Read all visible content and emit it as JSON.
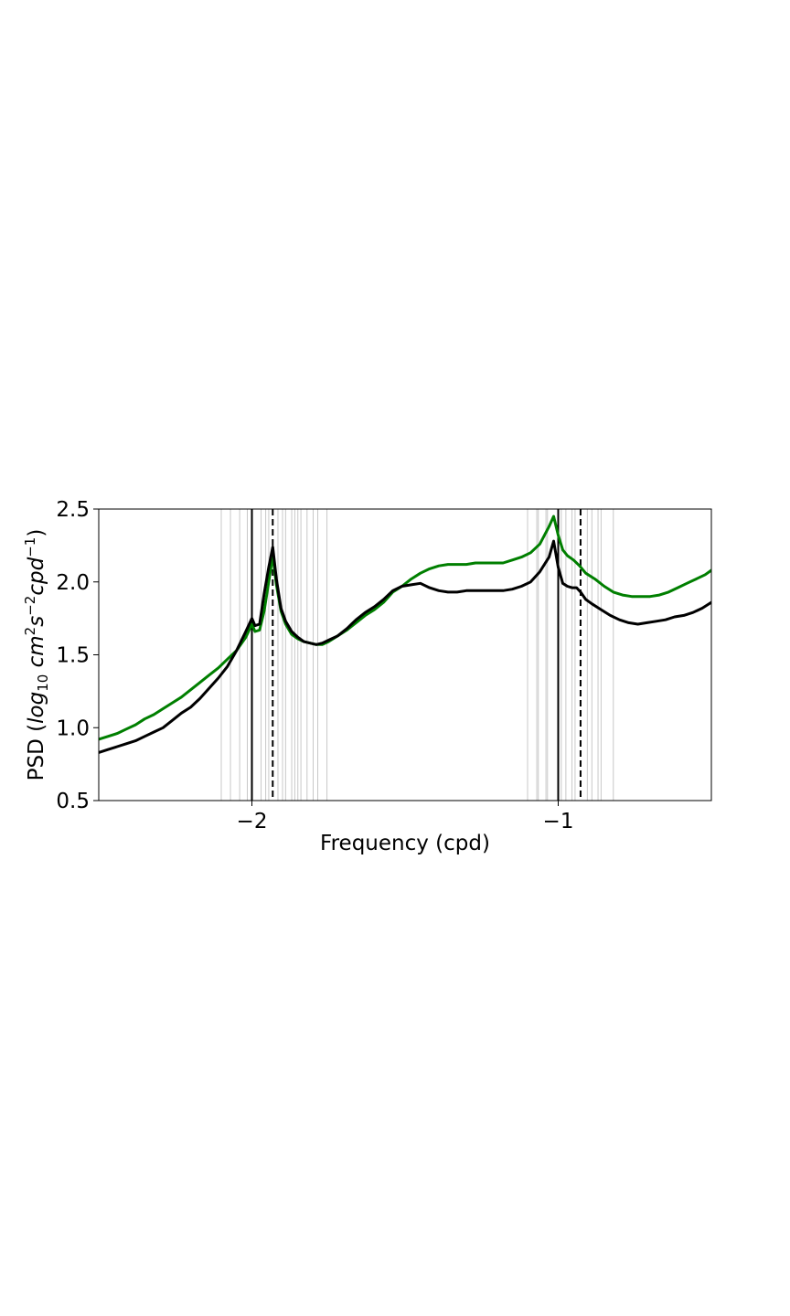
{
  "chart_data": {
    "type": "line",
    "xlabel": "Frequency (cpd)",
    "ylabel_parts": {
      "prefix": "PSD (",
      "log": "log",
      "log_sub": "10",
      "unit1": " cm",
      "exp1": "2",
      "unit2": "s",
      "exp2": "−2",
      "unit3": "cpd",
      "exp3": "−1",
      "suffix": ")"
    },
    "xlim": [
      -2.5,
      -0.5
    ],
    "ylim": [
      0.5,
      2.5
    ],
    "xticks": [
      {
        "value": -2,
        "label": "−2"
      },
      {
        "value": -1,
        "label": "−1"
      }
    ],
    "yticks": [
      {
        "value": 0.5,
        "label": "0.5"
      },
      {
        "value": 1.0,
        "label": "1.0"
      },
      {
        "value": 1.5,
        "label": "1.5"
      },
      {
        "value": 2.0,
        "label": "2.0"
      },
      {
        "value": 2.5,
        "label": "2.5"
      }
    ],
    "grid": false,
    "vlines_solid": [
      -2.0,
      -1.0
    ],
    "vlines_dashed": [
      -1.932,
      -0.927
    ],
    "vlines_gray": [
      -2.1,
      -2.07,
      -2.04,
      -2.015,
      -1.97,
      -1.955,
      -1.945,
      -1.915,
      -1.9,
      -1.89,
      -1.87,
      -1.86,
      -1.85,
      -1.84,
      -1.82,
      -1.8,
      -1.785,
      -1.755,
      -1.1,
      -1.07,
      -1.065,
      -1.04,
      -1.035,
      -0.99,
      -0.975,
      -0.955,
      -0.945,
      -0.905,
      -0.89,
      -0.87,
      -0.86,
      -0.82
    ],
    "colors": {
      "green": "#007f00",
      "black": "#000000",
      "vline_gray": "#c8c8c8"
    },
    "series": [
      {
        "color": "#007f00",
        "x": [
          -2.5,
          -2.47,
          -2.44,
          -2.41,
          -2.38,
          -2.35,
          -2.32,
          -2.29,
          -2.26,
          -2.23,
          -2.2,
          -2.17,
          -2.14,
          -2.11,
          -2.08,
          -2.05,
          -2.02,
          -2.0,
          -1.99,
          -1.975,
          -1.96,
          -1.945,
          -1.932,
          -1.92,
          -1.905,
          -1.89,
          -1.87,
          -1.85,
          -1.83,
          -1.81,
          -1.79,
          -1.77,
          -1.75,
          -1.72,
          -1.69,
          -1.66,
          -1.63,
          -1.6,
          -1.57,
          -1.54,
          -1.51,
          -1.48,
          -1.45,
          -1.42,
          -1.39,
          -1.36,
          -1.33,
          -1.3,
          -1.27,
          -1.24,
          -1.21,
          -1.18,
          -1.15,
          -1.12,
          -1.09,
          -1.06,
          -1.03,
          -1.015,
          -1.0,
          -0.985,
          -0.97,
          -0.95,
          -0.93,
          -0.91,
          -0.88,
          -0.85,
          -0.82,
          -0.79,
          -0.76,
          -0.73,
          -0.7,
          -0.67,
          -0.64,
          -0.61,
          -0.58,
          -0.55,
          -0.52,
          -0.5
        ],
        "y": [
          0.92,
          0.94,
          0.96,
          0.99,
          1.02,
          1.06,
          1.09,
          1.13,
          1.17,
          1.21,
          1.26,
          1.31,
          1.36,
          1.41,
          1.47,
          1.53,
          1.62,
          1.71,
          1.66,
          1.67,
          1.8,
          2.0,
          2.18,
          1.98,
          1.8,
          1.71,
          1.64,
          1.61,
          1.59,
          1.58,
          1.57,
          1.57,
          1.59,
          1.63,
          1.67,
          1.72,
          1.77,
          1.81,
          1.86,
          1.93,
          1.97,
          2.02,
          2.06,
          2.09,
          2.11,
          2.12,
          2.12,
          2.12,
          2.13,
          2.13,
          2.13,
          2.13,
          2.15,
          2.17,
          2.2,
          2.26,
          2.38,
          2.45,
          2.32,
          2.22,
          2.18,
          2.15,
          2.11,
          2.06,
          2.02,
          1.97,
          1.93,
          1.91,
          1.9,
          1.9,
          1.9,
          1.91,
          1.93,
          1.96,
          1.99,
          2.02,
          2.05,
          2.08
        ]
      },
      {
        "color": "#000000",
        "x": [
          -2.5,
          -2.47,
          -2.44,
          -2.41,
          -2.38,
          -2.35,
          -2.32,
          -2.29,
          -2.26,
          -2.23,
          -2.2,
          -2.17,
          -2.14,
          -2.11,
          -2.08,
          -2.05,
          -2.02,
          -2.0,
          -1.99,
          -1.975,
          -1.96,
          -1.945,
          -1.932,
          -1.92,
          -1.905,
          -1.89,
          -1.87,
          -1.85,
          -1.83,
          -1.81,
          -1.79,
          -1.77,
          -1.75,
          -1.72,
          -1.69,
          -1.66,
          -1.63,
          -1.6,
          -1.57,
          -1.54,
          -1.51,
          -1.48,
          -1.45,
          -1.42,
          -1.39,
          -1.36,
          -1.33,
          -1.3,
          -1.27,
          -1.24,
          -1.21,
          -1.18,
          -1.15,
          -1.12,
          -1.09,
          -1.06,
          -1.03,
          -1.015,
          -1.0,
          -0.985,
          -0.97,
          -0.955,
          -0.94,
          -0.927,
          -0.91,
          -0.89,
          -0.86,
          -0.83,
          -0.8,
          -0.77,
          -0.74,
          -0.71,
          -0.68,
          -0.65,
          -0.62,
          -0.59,
          -0.56,
          -0.53,
          -0.5
        ],
        "y": [
          0.83,
          0.85,
          0.87,
          0.89,
          0.91,
          0.94,
          0.97,
          1.0,
          1.05,
          1.1,
          1.14,
          1.2,
          1.27,
          1.34,
          1.42,
          1.53,
          1.66,
          1.75,
          1.7,
          1.71,
          1.92,
          2.1,
          2.24,
          2.02,
          1.82,
          1.73,
          1.66,
          1.62,
          1.59,
          1.58,
          1.57,
          1.58,
          1.6,
          1.63,
          1.68,
          1.74,
          1.79,
          1.83,
          1.88,
          1.94,
          1.97,
          1.98,
          1.99,
          1.96,
          1.94,
          1.93,
          1.93,
          1.94,
          1.94,
          1.94,
          1.94,
          1.94,
          1.95,
          1.97,
          2.0,
          2.07,
          2.17,
          2.28,
          2.1,
          1.99,
          1.97,
          1.96,
          1.96,
          1.93,
          1.88,
          1.85,
          1.81,
          1.77,
          1.74,
          1.72,
          1.71,
          1.72,
          1.73,
          1.74,
          1.76,
          1.77,
          1.79,
          1.82,
          1.86
        ]
      }
    ]
  }
}
